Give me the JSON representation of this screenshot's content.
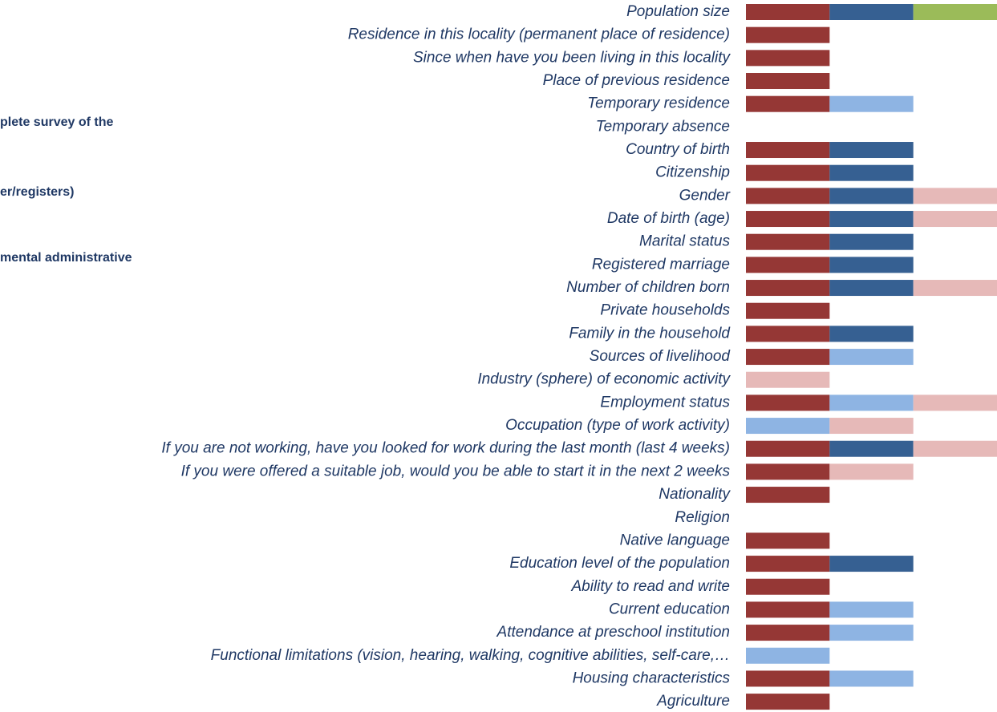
{
  "chart_data": {
    "type": "stacked_barh",
    "legend_fragments": [
      "plete survey of the",
      "er/registers)",
      "mental administrative"
    ],
    "categories": [
      "Population size",
      "Residence in this locality (permanent place of residence)",
      "Since when have you been living in this locality",
      "Place of previous residence",
      "Temporary residence",
      "Temporary absence",
      "Country of birth",
      "Citizenship",
      "Gender",
      "Date of birth (age)",
      "Marital status",
      "Registered marriage",
      "Number of children born",
      "Private households",
      "Family in the household",
      "Sources of livelihood",
      "Industry (sphere) of economic activity",
      "Employment status",
      "Occupation (type of work activity)",
      "If you are not working, have you looked for work during the last month (last 4 weeks)",
      "If you were offered a suitable job, would you be able to start it in the next 2 weeks",
      "Nationality",
      "Religion",
      "Native language",
      "Education level of the population",
      "Ability to read and write",
      "Current education",
      "Attendance at preschool institution",
      "Functional limitations (vision, hearing, walking, cognitive abilities, self-care,…",
      "Housing characteristics",
      "Agriculture"
    ],
    "series": [
      {
        "color": "#953735",
        "values": [
          1,
          1,
          1,
          1,
          1,
          0,
          1,
          1,
          1,
          1,
          1,
          1,
          1,
          1,
          1,
          1,
          0,
          1,
          0,
          1,
          1,
          1,
          0,
          1,
          1,
          1,
          1,
          1,
          0,
          1,
          1
        ]
      },
      {
        "color": "#366092",
        "values": [
          1,
          0,
          0,
          0,
          0,
          0,
          1,
          1,
          1,
          1,
          1,
          1,
          1,
          0,
          1,
          0,
          0,
          0,
          0,
          1,
          0,
          0,
          0,
          0,
          1,
          0,
          0,
          0,
          0,
          0,
          0
        ]
      },
      {
        "color": "#8eb4e3",
        "values": [
          0,
          0,
          0,
          0,
          1,
          0,
          0,
          0,
          0,
          0,
          0,
          0,
          0,
          0,
          0,
          1,
          0,
          1,
          1,
          0,
          0,
          0,
          0,
          0,
          0,
          0,
          1,
          1,
          1,
          1,
          0
        ]
      },
      {
        "color": "#e6b9b8",
        "values": [
          0,
          0,
          0,
          0,
          0,
          0,
          0,
          0,
          1,
          1,
          0,
          0,
          1,
          0,
          0,
          0,
          1,
          1,
          1,
          1,
          1,
          0,
          0,
          0,
          0,
          0,
          0,
          0,
          0,
          0,
          0
        ]
      },
      {
        "color": "#9bbb59",
        "values": [
          1,
          0,
          0,
          0,
          0,
          0,
          0,
          0,
          0,
          0,
          0,
          0,
          0,
          0,
          0,
          0,
          0,
          0,
          0,
          0,
          0,
          0,
          0,
          0,
          0,
          0,
          0,
          0,
          0,
          0,
          0
        ]
      }
    ],
    "xlim": [
      0,
      3
    ]
  }
}
